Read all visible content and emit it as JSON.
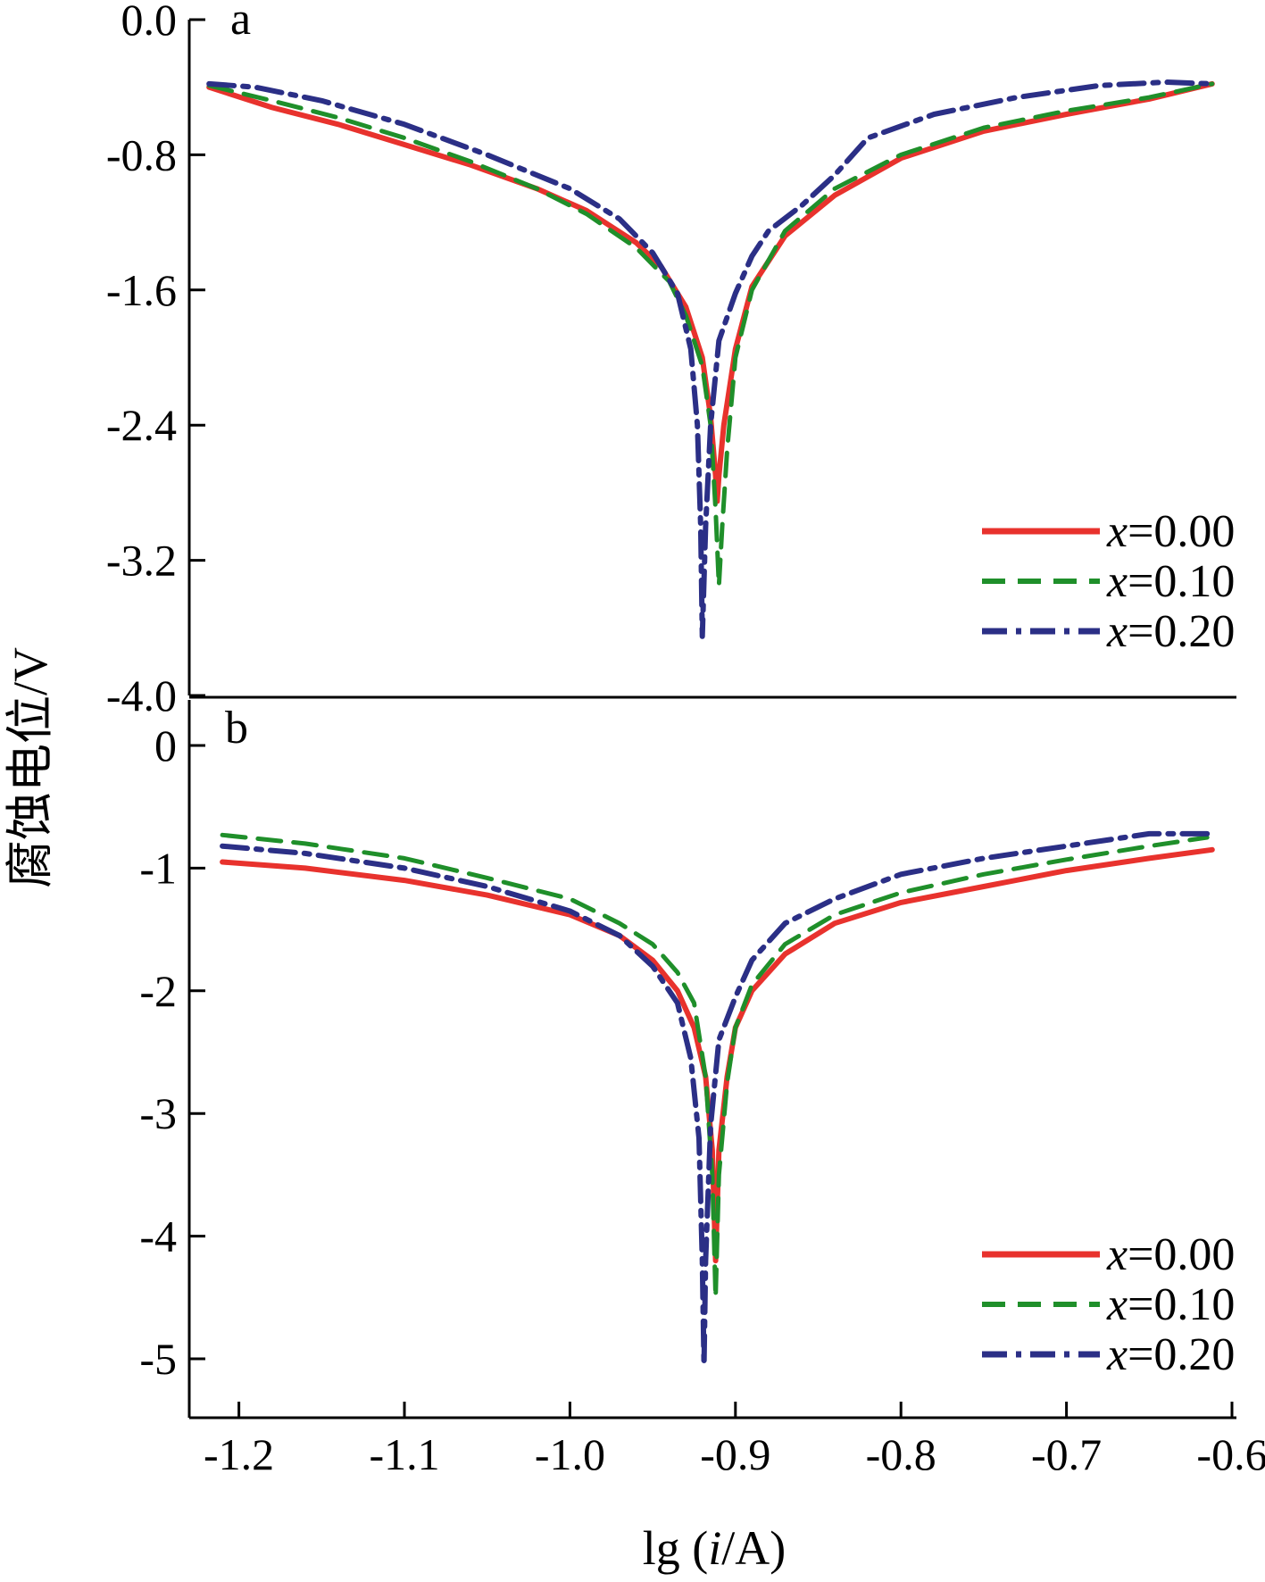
{
  "chart_data": {
    "type": "line",
    "ylabel": "腐蚀电位/V",
    "xlabel_prefix": "lg (",
    "xlabel_var": "i",
    "xlabel_suffix": "/A)",
    "xlim": [
      -1.23,
      -0.6
    ],
    "xticks": [
      -1.2,
      -1.1,
      -1.0,
      -0.9,
      -0.8,
      -0.7,
      -0.6
    ],
    "xtick_labels": [
      "-1.2",
      "-1.1",
      "-1.0",
      "-0.9",
      "-0.8",
      "-0.7",
      "-0.6"
    ],
    "series_styles": [
      {
        "color": "#e8322d",
        "dash": "solid"
      },
      {
        "color": "#1f8f2a",
        "dash": "dashed"
      },
      {
        "color": "#2b2f86",
        "dash": "dashdot"
      }
    ],
    "panels": [
      {
        "label": "a",
        "ylim": [
          -4.0,
          0.0
        ],
        "yticks": [
          0.0,
          -0.8,
          -1.6,
          -2.4,
          -3.2,
          -4.0
        ],
        "ytick_labels": [
          "0.0",
          "-0.8",
          "-1.6",
          "-2.4",
          "-3.2",
          "-4.0"
        ],
        "legend_position": "lower-right",
        "series": [
          {
            "name_var": "x",
            "name_value": "=0.00",
            "x": [
              -1.218,
              -1.18,
              -1.14,
              -1.1,
              -1.06,
              -1.02,
              -0.99,
              -0.96,
              -0.945,
              -0.93,
              -0.92,
              -0.915,
              -0.912,
              -0.911,
              -0.91,
              -0.907,
              -0.9,
              -0.89,
              -0.87,
              -0.84,
              -0.8,
              -0.75,
              -0.7,
              -0.65,
              -0.612
            ],
            "y": [
              -0.4,
              -0.52,
              -0.62,
              -0.74,
              -0.86,
              -1.0,
              -1.13,
              -1.32,
              -1.46,
              -1.7,
              -2.0,
              -2.35,
              -2.7,
              -2.85,
              -2.7,
              -2.4,
              -1.95,
              -1.58,
              -1.28,
              -1.04,
              -0.82,
              -0.66,
              -0.56,
              -0.47,
              -0.38
            ]
          },
          {
            "name_var": "x",
            "name_value": "=0.10",
            "x": [
              -1.218,
              -1.18,
              -1.14,
              -1.1,
              -1.06,
              -1.02,
              -0.99,
              -0.96,
              -0.94,
              -0.93,
              -0.92,
              -0.915,
              -0.912,
              -0.91,
              -0.908,
              -0.905,
              -0.9,
              -0.89,
              -0.87,
              -0.84,
              -0.8,
              -0.75,
              -0.7,
              -0.65,
              -0.612
            ],
            "y": [
              -0.39,
              -0.48,
              -0.58,
              -0.7,
              -0.84,
              -1.0,
              -1.15,
              -1.35,
              -1.55,
              -1.75,
              -2.05,
              -2.4,
              -2.9,
              -3.35,
              -3.0,
              -2.55,
              -2.0,
              -1.6,
              -1.25,
              -1.0,
              -0.8,
              -0.64,
              -0.54,
              -0.46,
              -0.38
            ]
          },
          {
            "name_var": "x",
            "name_value": "=0.20",
            "x": [
              -1.218,
              -1.19,
              -1.15,
              -1.1,
              -1.05,
              -1.0,
              -0.97,
              -0.95,
              -0.935,
              -0.927,
              -0.923,
              -0.921,
              -0.92,
              -0.918,
              -0.915,
              -0.91,
              -0.9,
              -0.89,
              -0.88,
              -0.86,
              -0.84,
              -0.82,
              -0.78,
              -0.73,
              -0.68,
              -0.64,
              -0.612
            ],
            "y": [
              -0.38,
              -0.4,
              -0.48,
              -0.62,
              -0.8,
              -1.0,
              -1.18,
              -1.38,
              -1.62,
              -1.95,
              -2.4,
              -3.0,
              -3.65,
              -3.0,
              -2.4,
              -1.9,
              -1.62,
              -1.4,
              -1.25,
              -1.1,
              -0.92,
              -0.7,
              -0.56,
              -0.46,
              -0.39,
              -0.37,
              -0.38
            ]
          }
        ]
      },
      {
        "label": "b",
        "ylim": [
          -5.5,
          0.25
        ],
        "yticks": [
          0,
          -1,
          -2,
          -3,
          -4,
          -5
        ],
        "ytick_labels": [
          "0",
          "-1",
          "-2",
          "-3",
          "-4",
          "-5"
        ],
        "legend_position": "lower-right",
        "series": [
          {
            "name_var": "x",
            "name_value": "=0.00",
            "x": [
              -1.21,
              -1.16,
              -1.1,
              -1.05,
              -1.0,
              -0.97,
              -0.95,
              -0.935,
              -0.925,
              -0.918,
              -0.914,
              -0.912,
              -0.91,
              -0.905,
              -0.9,
              -0.89,
              -0.87,
              -0.84,
              -0.8,
              -0.75,
              -0.7,
              -0.65,
              -0.612
            ],
            "y": [
              -0.95,
              -1.0,
              -1.1,
              -1.22,
              -1.38,
              -1.55,
              -1.75,
              -2.0,
              -2.3,
              -2.7,
              -3.3,
              -4.2,
              -3.3,
              -2.7,
              -2.3,
              -2.0,
              -1.7,
              -1.45,
              -1.28,
              -1.15,
              -1.02,
              -0.92,
              -0.85
            ]
          },
          {
            "name_var": "x",
            "name_value": "=0.10",
            "x": [
              -1.21,
              -1.16,
              -1.1,
              -1.05,
              -1.0,
              -0.97,
              -0.95,
              -0.935,
              -0.925,
              -0.918,
              -0.914,
              -0.912,
              -0.91,
              -0.905,
              -0.9,
              -0.89,
              -0.87,
              -0.84,
              -0.8,
              -0.75,
              -0.7,
              -0.65,
              -0.615
            ],
            "y": [
              -0.73,
              -0.8,
              -0.92,
              -1.08,
              -1.25,
              -1.45,
              -1.62,
              -1.85,
              -2.1,
              -2.7,
              -3.5,
              -4.5,
              -3.5,
              -2.75,
              -2.3,
              -1.95,
              -1.62,
              -1.38,
              -1.2,
              -1.05,
              -0.93,
              -0.82,
              -0.75
            ]
          },
          {
            "name_var": "x",
            "name_value": "=0.20",
            "x": [
              -1.21,
              -1.16,
              -1.1,
              -1.05,
              -1.0,
              -0.97,
              -0.95,
              -0.935,
              -0.927,
              -0.922,
              -0.92,
              -0.919,
              -0.918,
              -0.915,
              -0.91,
              -0.9,
              -0.89,
              -0.87,
              -0.84,
              -0.8,
              -0.75,
              -0.7,
              -0.65,
              -0.615
            ],
            "y": [
              -0.82,
              -0.88,
              -1.0,
              -1.15,
              -1.35,
              -1.55,
              -1.8,
              -2.1,
              -2.55,
              -3.2,
              -4.2,
              -5.05,
              -4.2,
              -3.1,
              -2.4,
              -2.05,
              -1.75,
              -1.45,
              -1.25,
              -1.05,
              -0.92,
              -0.82,
              -0.72,
              -0.72
            ]
          }
        ]
      }
    ]
  }
}
